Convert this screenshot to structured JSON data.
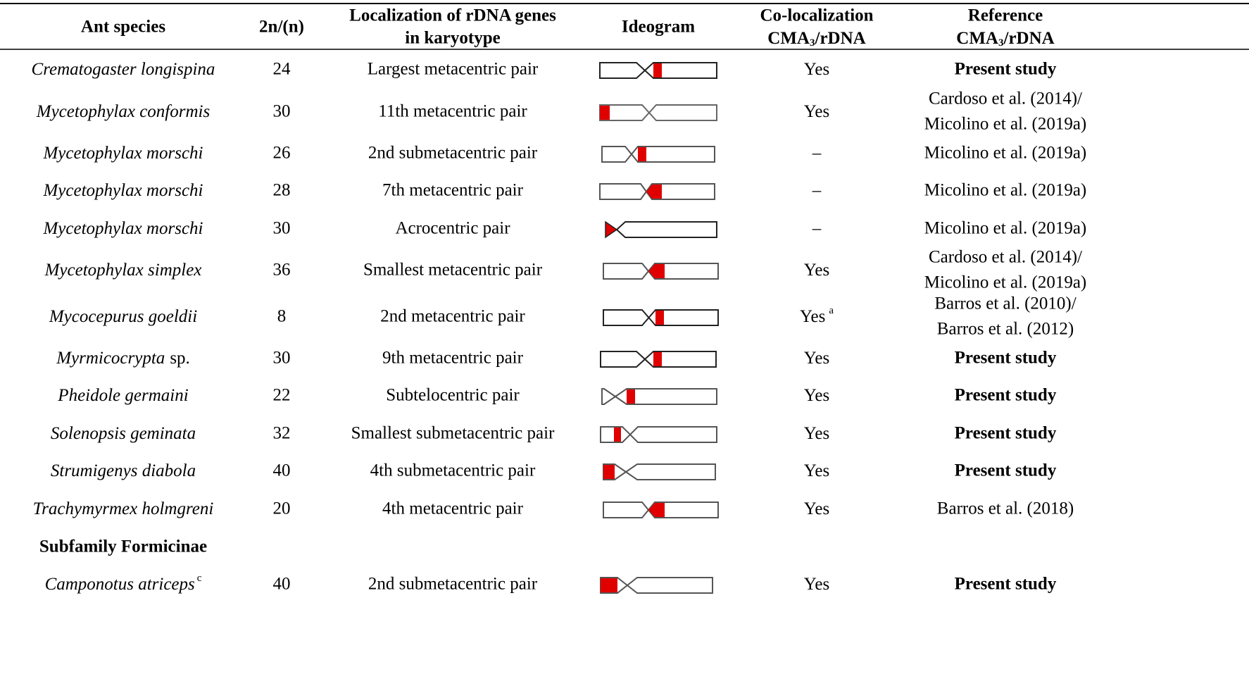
{
  "header": {
    "species": "Ant species",
    "chromosome_number": "2n/(n)",
    "localization": [
      "Localization of rDNA genes",
      "in karyotype"
    ],
    "ideogram": "Ideogram",
    "colocalization": {
      "line1": "Co-localization",
      "line2": [
        "CMA",
        "3",
        "/rDNA"
      ]
    },
    "reference": {
      "line1": "Reference",
      "line2": [
        "CMA",
        "3",
        "/rDNA"
      ]
    }
  },
  "rows": [
    {
      "species": "Crematogaster longispina",
      "chromosome_number": 24,
      "localization": "Largest metacentric pair",
      "colocalization": "Yes",
      "reference": [
        "Present study"
      ],
      "reference_bold": true
    },
    {
      "species": "Mycetophylax conformis",
      "chromosome_number": 30,
      "localization": "11th metacentric pair",
      "colocalization": "Yes",
      "reference": [
        "Cardoso et al. (2014)/",
        "Micolino et al. (2019a)"
      ],
      "reference_bold": false
    },
    {
      "species": "Mycetophylax morschi",
      "chromosome_number": 26,
      "localization": "2nd submetacentric pair",
      "colocalization": "–",
      "reference": [
        "Micolino et al. (2019a)"
      ],
      "reference_bold": false
    },
    {
      "species": "Mycetophylax morschi",
      "chromosome_number": 28,
      "localization": "7th metacentric pair",
      "colocalization": "–",
      "reference": [
        "Micolino et al. (2019a)"
      ],
      "reference_bold": false
    },
    {
      "species": "Mycetophylax morschi",
      "chromosome_number": 30,
      "localization": "Acrocentric pair",
      "colocalization": "–",
      "reference": [
        "Micolino et al. (2019a)"
      ],
      "reference_bold": false
    },
    {
      "species": "Mycetophylax simplex",
      "chromosome_number": 36,
      "localization": "Smallest metacentric pair",
      "colocalization": "Yes",
      "reference": [
        "Cardoso et al. (2014)/",
        "Micolino et al. (2019a)"
      ],
      "reference_bold": false
    },
    {
      "species": "Mycocepurus goeldii",
      "chromosome_number": 8,
      "localization": "2nd metacentric pair",
      "colocalization": "Yes",
      "colocalization_note": "a",
      "reference": [
        "Barros et al. (2010)/",
        "Barros et al. (2012)"
      ],
      "reference_bold": false
    },
    {
      "species": "Myrmicocrypta",
      "species_suffix": "sp.",
      "chromosome_number": 30,
      "localization": "9th metacentric pair",
      "colocalization": "Yes",
      "reference": [
        "Present study"
      ],
      "reference_bold": true
    },
    {
      "species": "Pheidole germaini",
      "chromosome_number": 22,
      "localization": "Subtelocentric pair",
      "colocalization": "Yes",
      "reference": [
        "Present study"
      ],
      "reference_bold": true
    },
    {
      "species": "Solenopsis geminata",
      "chromosome_number": 32,
      "localization": "Smallest submetacentric pair",
      "colocalization": "Yes",
      "reference": [
        "Present study"
      ],
      "reference_bold": true
    },
    {
      "species": "Strumigenys diabola",
      "chromosome_number": 40,
      "localization": "4th submetacentric pair",
      "colocalization": "Yes",
      "reference": [
        "Present study"
      ],
      "reference_bold": true
    },
    {
      "species": "Trachymyrmex holmgreni",
      "chromosome_number": 20,
      "localization": "4th metacentric pair",
      "colocalization": "Yes",
      "reference": [
        "Barros et al. (2018)"
      ],
      "reference_bold": false
    },
    {
      "section": "Subfamily Formicinae"
    },
    {
      "species": "Camponotus atriceps",
      "species_note": "c",
      "chromosome_number": 40,
      "localization": "2nd submetacentric pair",
      "colocalization": "Yes",
      "reference": [
        "Present study"
      ],
      "reference_bold": true
    }
  ]
}
